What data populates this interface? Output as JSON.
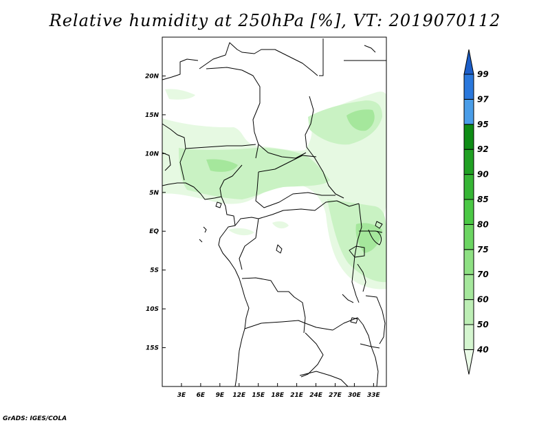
{
  "title": "Relative humidity at 250hPa [%], VT: 2019070112",
  "credit": "GrADS: IGES/COLA",
  "map": {
    "lon_range": [
      0,
      35
    ],
    "lat_range": [
      -20,
      25
    ],
    "lon_ticks": [
      "3E",
      "6E",
      "9E",
      "12E",
      "15E",
      "18E",
      "21E",
      "24E",
      "27E",
      "30E",
      "33E"
    ],
    "lat_ticks": [
      "20N",
      "15N",
      "10N",
      "5N",
      "EQ",
      "5S",
      "10S",
      "15S"
    ]
  },
  "colorbar": {
    "levels": [
      "40",
      "50",
      "60",
      "70",
      "75",
      "80",
      "85",
      "90",
      "92",
      "95",
      "97",
      "99"
    ],
    "colors": [
      "#ebfbe8",
      "#d4f5cf",
      "#bdeeb5",
      "#a5e79c",
      "#8ee083",
      "#6cd562",
      "#4bc845",
      "#36b535",
      "#20a023",
      "#0e8c15",
      "#4a9de8",
      "#2a78dc",
      "#1c5ec8"
    ]
  }
}
